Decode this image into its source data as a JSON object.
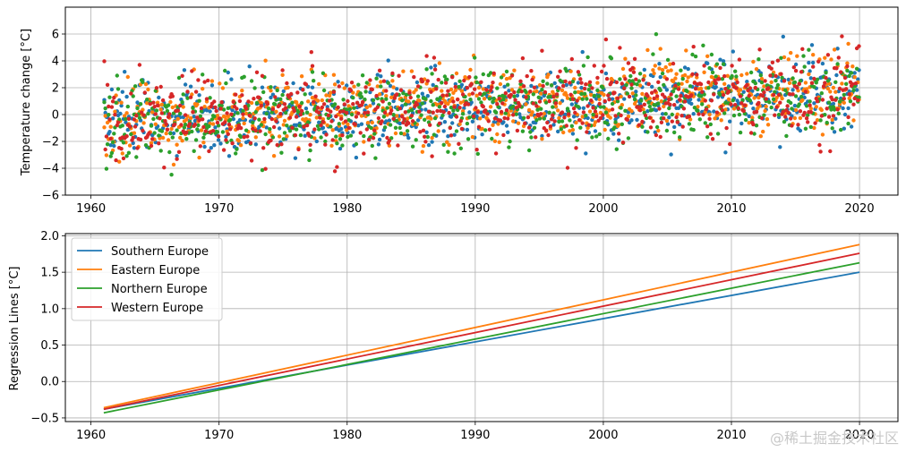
{
  "watermark": "@稀土掘金技术社区",
  "chart_data": [
    {
      "type": "scatter",
      "title": "",
      "xlabel": "",
      "ylabel": "Temperature change [°C]",
      "xlim": [
        1958,
        2023
      ],
      "ylim": [
        -6,
        8
      ],
      "xticks": [
        1960,
        1970,
        1980,
        1990,
        2000,
        2010,
        2020
      ],
      "yticks": [
        -6,
        -4,
        -2,
        0,
        2,
        4,
        6
      ],
      "ytick_labels": [
        "−6",
        "−4",
        "−2",
        "0",
        "2",
        "4",
        "6"
      ],
      "grid": true,
      "legend": false,
      "series": [
        {
          "color": "#1f77b4",
          "start_year": 1961,
          "end_year": 2019,
          "trend_start": -0.38,
          "trend_end": 1.5,
          "spread": 1.3
        },
        {
          "color": "#ff7f0e",
          "start_year": 1961,
          "end_year": 2019,
          "trend_start": -0.36,
          "trend_end": 1.88,
          "spread": 1.4
        },
        {
          "color": "#2ca02c",
          "start_year": 1961,
          "end_year": 2019,
          "trend_start": -0.43,
          "trend_end": 1.63,
          "spread": 1.5
        },
        {
          "color": "#d62728",
          "start_year": 1961,
          "end_year": 2019,
          "trend_start": -0.38,
          "trend_end": 1.76,
          "spread": 1.5
        }
      ]
    },
    {
      "type": "line",
      "title": "",
      "xlabel": "",
      "ylabel": "Regression Lines [°C]",
      "xlim": [
        1958,
        2023
      ],
      "ylim": [
        -0.55,
        2.03
      ],
      "xticks": [
        1960,
        1970,
        1980,
        1990,
        2000,
        2010,
        2020
      ],
      "yticks": [
        -0.5,
        0.0,
        0.5,
        1.0,
        1.5,
        2.0
      ],
      "ytick_labels": [
        "−0.5",
        "0.0",
        "0.5",
        "1.0",
        "1.5",
        "2.0"
      ],
      "grid": true,
      "legend": "top-left",
      "series": [
        {
          "name": "Southern Europe",
          "color": "#1f77b4",
          "x": [
            1961,
            2020
          ],
          "y": [
            -0.38,
            1.5
          ]
        },
        {
          "name": "Eastern Europe",
          "color": "#ff7f0e",
          "x": [
            1961,
            2020
          ],
          "y": [
            -0.36,
            1.88
          ]
        },
        {
          "name": "Northern Europe",
          "color": "#2ca02c",
          "x": [
            1961,
            2020
          ],
          "y": [
            -0.43,
            1.63
          ]
        },
        {
          "name": "Western Europe",
          "color": "#d62728",
          "x": [
            1961,
            2020
          ],
          "y": [
            -0.38,
            1.76
          ]
        }
      ]
    }
  ]
}
